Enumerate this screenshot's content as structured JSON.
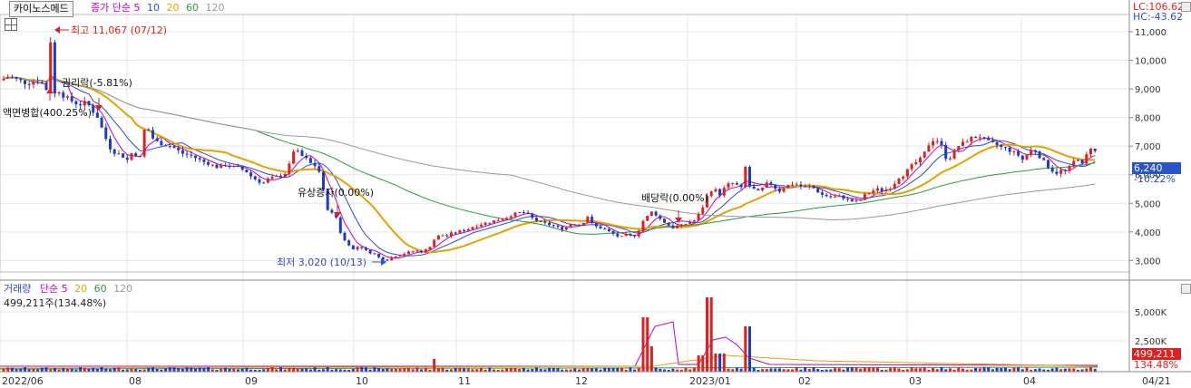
{
  "toolbar": {
    "stock_name": "카이노스메드",
    "ma_label": "종가 단순",
    "ma_periods": [
      "5",
      "10",
      "20",
      "60",
      "120"
    ],
    "ma_colors": [
      "#c000c0",
      "#2a4bd7",
      "#e6a000",
      "#2e9a38",
      "#999999"
    ]
  },
  "price_panel": {
    "lc_label": "LC:106.62",
    "hc_label": "HC:-43.62",
    "y_ticks": [
      "11,000",
      "10,000",
      "9,000",
      "8,000",
      "7,000",
      "6,000",
      "5,000",
      "4,000",
      "3,000"
    ],
    "current_price": "6,240",
    "current_change": "-10.22%",
    "annotations": {
      "high": "최고 11,067 (07/12)",
      "low": "최저 3,020 (10/13)",
      "rights_drop": "권리락(-5.81%)",
      "split": "액면병합(400.25%)",
      "rights_issue": "유상증자(0.00%)",
      "dividend": "배당락(0.00%)"
    }
  },
  "volume_panel": {
    "title": "거래량",
    "ma_label": "단순",
    "ma_periods": [
      "5",
      "20",
      "60",
      "120"
    ],
    "ma_colors": [
      "#c000c0",
      "#e6a000",
      "#2e9a38",
      "#999999"
    ],
    "info": "499,211주(134.48%)",
    "y_ticks": [
      "5,000K",
      "2,500K"
    ],
    "current_volume": "499,211",
    "current_change": "134.48%"
  },
  "x_axis": {
    "labels": [
      "2022/06",
      "08",
      "09",
      "10",
      "11",
      "12",
      "2023/01",
      "02",
      "03",
      "04",
      "04/21"
    ]
  },
  "colors": {
    "up": "#e02020",
    "down": "#1a3cc8",
    "grid": "#e6e6e6",
    "box_red": "#e02020",
    "box_blue": "#2a54c8"
  },
  "chart_data": {
    "type": "candlestick",
    "title": "카이노스메드",
    "y_range": [
      2600,
      11600
    ],
    "y_ticks": [
      11000,
      10000,
      9000,
      8000,
      7000,
      6000,
      5000,
      4000,
      3000
    ],
    "x_labels": [
      "2022/06",
      "08",
      "09",
      "10",
      "11",
      "12",
      "2023/01",
      "02",
      "03",
      "04"
    ],
    "close_path": [
      [
        0,
        9300
      ],
      [
        10,
        9450
      ],
      [
        20,
        9300
      ],
      [
        30,
        9200
      ],
      [
        36,
        9250
      ],
      [
        42,
        9300
      ],
      [
        46,
        9200
      ],
      [
        50,
        9150
      ],
      [
        54,
        8500
      ],
      [
        56,
        11067
      ],
      [
        58,
        8400
      ],
      [
        62,
        9100
      ],
      [
        66,
        8900
      ],
      [
        72,
        8700
      ],
      [
        78,
        8600
      ],
      [
        84,
        8500
      ],
      [
        90,
        8450
      ],
      [
        96,
        8550
      ],
      [
        100,
        8300
      ],
      [
        106,
        8100
      ],
      [
        110,
        7900
      ],
      [
        114,
        7400
      ],
      [
        118,
        7200
      ],
      [
        122,
        6900
      ],
      [
        126,
        6800
      ],
      [
        130,
        6700
      ],
      [
        134,
        6800
      ],
      [
        138,
        6400
      ],
      [
        142,
        6600
      ],
      [
        146,
        6800
      ],
      [
        150,
        6700
      ],
      [
        154,
        6500
      ],
      [
        158,
        7500
      ],
      [
        162,
        7700
      ],
      [
        166,
        7400
      ],
      [
        170,
        7200
      ],
      [
        176,
        7100
      ],
      [
        182,
        7050
      ],
      [
        188,
        7000
      ],
      [
        194,
        6900
      ],
      [
        200,
        6750
      ],
      [
        206,
        6700
      ],
      [
        212,
        6650
      ],
      [
        218,
        6550
      ],
      [
        224,
        6450
      ],
      [
        230,
        6400
      ],
      [
        236,
        6300
      ],
      [
        242,
        6250
      ],
      [
        248,
        6350
      ],
      [
        254,
        6300
      ],
      [
        260,
        6250
      ],
      [
        266,
        6200
      ],
      [
        272,
        6100
      ],
      [
        278,
        5900
      ],
      [
        284,
        5800
      ],
      [
        290,
        5700
      ],
      [
        296,
        5850
      ],
      [
        302,
        5900
      ],
      [
        308,
        5950
      ],
      [
        314,
        6050
      ],
      [
        318,
        6200
      ],
      [
        322,
        6800
      ],
      [
        326,
        6900
      ],
      [
        330,
        6700
      ],
      [
        336,
        6600
      ],
      [
        342,
        6400
      ],
      [
        348,
        6300
      ],
      [
        352,
        6100
      ],
      [
        356,
        5500
      ],
      [
        360,
        4900
      ],
      [
        364,
        4600
      ],
      [
        368,
        4700
      ],
      [
        372,
        4400
      ],
      [
        376,
        3900
      ],
      [
        380,
        3700
      ],
      [
        384,
        3600
      ],
      [
        388,
        3400
      ],
      [
        392,
        3350
      ],
      [
        396,
        3600
      ],
      [
        400,
        3400
      ],
      [
        406,
        3300
      ],
      [
        412,
        3250
      ],
      [
        418,
        3100
      ],
      [
        424,
        3050
      ],
      [
        428,
        3020
      ],
      [
        434,
        3150
      ],
      [
        440,
        3200
      ],
      [
        446,
        3250
      ],
      [
        452,
        3300
      ],
      [
        458,
        3350
      ],
      [
        464,
        3300
      ],
      [
        468,
        3350
      ],
      [
        472,
        3400
      ],
      [
        476,
        3600
      ],
      [
        480,
        3800
      ],
      [
        486,
        3900
      ],
      [
        492,
        3850
      ],
      [
        498,
        3950
      ],
      [
        504,
        4000
      ],
      [
        510,
        4050
      ],
      [
        516,
        4100
      ],
      [
        522,
        4200
      ],
      [
        528,
        4250
      ],
      [
        534,
        4300
      ],
      [
        540,
        4350
      ],
      [
        546,
        4400
      ],
      [
        552,
        4450
      ],
      [
        558,
        4500
      ],
      [
        564,
        4600
      ],
      [
        570,
        4650
      ],
      [
        576,
        4700
      ],
      [
        582,
        4600
      ],
      [
        588,
        4450
      ],
      [
        594,
        4350
      ],
      [
        600,
        4300
      ],
      [
        606,
        4250
      ],
      [
        612,
        4200
      ],
      [
        618,
        4100
      ],
      [
        624,
        4150
      ],
      [
        630,
        4300
      ],
      [
        636,
        4250
      ],
      [
        642,
        4300
      ],
      [
        648,
        4550
      ],
      [
        652,
        4300
      ],
      [
        656,
        4200
      ],
      [
        660,
        4150
      ],
      [
        666,
        4100
      ],
      [
        672,
        4000
      ],
      [
        678,
        3900
      ],
      [
        684,
        3800
      ],
      [
        690,
        3900
      ],
      [
        696,
        3850
      ],
      [
        702,
        3900
      ],
      [
        706,
        4200
      ],
      [
        710,
        4450
      ],
      [
        714,
        4550
      ],
      [
        718,
        4700
      ],
      [
        722,
        4650
      ],
      [
        726,
        4500
      ],
      [
        730,
        4400
      ],
      [
        736,
        4250
      ],
      [
        742,
        4150
      ],
      [
        748,
        4200
      ],
      [
        754,
        4250
      ],
      [
        760,
        4350
      ],
      [
        766,
        4400
      ],
      [
        770,
        4600
      ],
      [
        774,
        4800
      ],
      [
        778,
        5200
      ],
      [
        782,
        5300
      ],
      [
        786,
        5600
      ],
      [
        790,
        5400
      ],
      [
        794,
        5300
      ],
      [
        798,
        5500
      ],
      [
        802,
        5650
      ],
      [
        808,
        5700
      ],
      [
        814,
        5600
      ],
      [
        818,
        5500
      ],
      [
        822,
        6300
      ],
      [
        826,
        5600
      ],
      [
        830,
        5500
      ],
      [
        836,
        5400
      ],
      [
        840,
        5500
      ],
      [
        846,
        5700
      ],
      [
        852,
        5650
      ],
      [
        858,
        5400
      ],
      [
        864,
        5550
      ],
      [
        870,
        5650
      ],
      [
        876,
        5700
      ],
      [
        882,
        5600
      ],
      [
        888,
        5550
      ],
      [
        894,
        5600
      ],
      [
        900,
        5450
      ],
      [
        906,
        5300
      ],
      [
        912,
        5250
      ],
      [
        918,
        5200
      ],
      [
        924,
        5250
      ],
      [
        930,
        5200
      ],
      [
        936,
        5100
      ],
      [
        942,
        5050
      ],
      [
        948,
        5100
      ],
      [
        954,
        5300
      ],
      [
        960,
        5400
      ],
      [
        966,
        5500
      ],
      [
        972,
        5450
      ],
      [
        978,
        5500
      ],
      [
        984,
        5600
      ],
      [
        990,
        5900
      ],
      [
        996,
        6000
      ],
      [
        1002,
        6200
      ],
      [
        1008,
        6400
      ],
      [
        1014,
        6500
      ],
      [
        1020,
        6800
      ],
      [
        1026,
        7200
      ],
      [
        1032,
        7250
      ],
      [
        1038,
        7000
      ],
      [
        1044,
        6500
      ],
      [
        1050,
        6700
      ],
      [
        1056,
        7000
      ],
      [
        1062,
        7100
      ],
      [
        1068,
        7250
      ],
      [
        1074,
        7300
      ],
      [
        1080,
        7350
      ],
      [
        1086,
        7200
      ],
      [
        1092,
        7100
      ],
      [
        1098,
        7050
      ],
      [
        1104,
        6950
      ],
      [
        1110,
        6900
      ],
      [
        1116,
        6800
      ],
      [
        1122,
        6700
      ],
      [
        1128,
        6500
      ],
      [
        1134,
        6800
      ],
      [
        1140,
        6900
      ],
      [
        1146,
        6650
      ],
      [
        1152,
        6400
      ],
      [
        1158,
        6200
      ],
      [
        1164,
        6050
      ],
      [
        1170,
        6150
      ],
      [
        1176,
        6100
      ],
      [
        1182,
        6400
      ],
      [
        1188,
        6600
      ],
      [
        1194,
        6300
      ],
      [
        1200,
        6900
      ],
      [
        1206,
        7050
      ],
      [
        1210,
        6240
      ]
    ]
  }
}
